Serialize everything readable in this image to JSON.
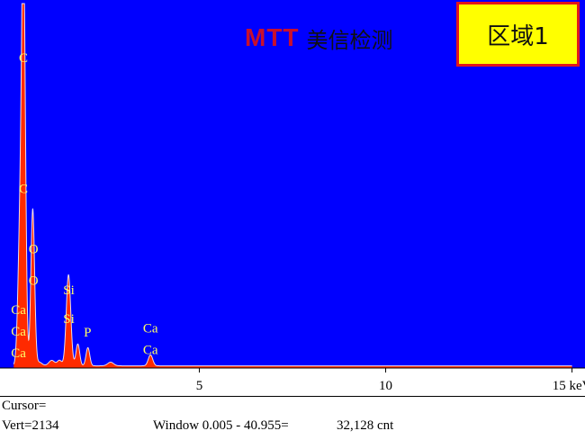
{
  "logo": {
    "mark": "MTT",
    "text": "美信检测"
  },
  "region_label": "区域1",
  "status": {
    "cursor": "Cursor=",
    "vert": "Vert=2134",
    "window": "Window 0.005 - 40.955=",
    "count": "32,128 cnt"
  },
  "colors": {
    "background": "#0000ff",
    "spectrum_fill": "#ff2a00",
    "spectrum_outline": "#ffffff",
    "peak_label": "#ffff66"
  },
  "chart_data": {
    "type": "area",
    "title": "",
    "xlabel": "",
    "ylabel": "",
    "xlim": [
      -0.3,
      15.3
    ],
    "ylim": [
      0,
      100
    ],
    "x_ticks": [
      5,
      10,
      15
    ],
    "x_tick_labels": [
      "5",
      "10",
      "15 keV"
    ],
    "grid": false,
    "legend": "none",
    "series": [
      {
        "peaks": [
          {
            "x": 0.28,
            "height": 97,
            "width": 0.045
          },
          {
            "x": 0.2,
            "height": 42,
            "width": 0.06
          },
          {
            "x": 0.53,
            "height": 43,
            "width": 0.05
          },
          {
            "x": 0.34,
            "height": 18,
            "width": 0.04
          },
          {
            "x": 1.49,
            "height": 25,
            "width": 0.06
          },
          {
            "x": 1.74,
            "height": 6,
            "width": 0.05
          },
          {
            "x": 2.01,
            "height": 5,
            "width": 0.05
          },
          {
            "x": 3.69,
            "height": 3,
            "width": 0.06
          },
          {
            "x": 1.04,
            "height": 1.5,
            "width": 0.08
          },
          {
            "x": 0.7,
            "height": 1,
            "width": 0.08
          },
          {
            "x": 1.25,
            "height": 1.5,
            "width": 0.06
          },
          {
            "x": 2.62,
            "height": 1,
            "width": 0.08
          }
        ],
        "baseline": 0.6
      }
    ],
    "annotations": [
      {
        "text": "C",
        "x": 0.28,
        "y": 84
      },
      {
        "text": "C",
        "x": 0.28,
        "y": 48
      },
      {
        "text": "O",
        "x": 0.55,
        "y": 31.5
      },
      {
        "text": "O",
        "x": 0.55,
        "y": 22.8
      },
      {
        "text": "Si",
        "x": 1.5,
        "y": 20.3
      },
      {
        "text": "Si",
        "x": 1.5,
        "y": 12.3
      },
      {
        "text": "P",
        "x": 2.0,
        "y": 8.6
      },
      {
        "text": "Ca",
        "x": 0.15,
        "y": 14.8
      },
      {
        "text": "Ca",
        "x": 0.15,
        "y": 8.9
      },
      {
        "text": "Ca",
        "x": 0.15,
        "y": 3.0
      },
      {
        "text": "Ca",
        "x": 3.69,
        "y": 9.8
      },
      {
        "text": "Ca",
        "x": 3.69,
        "y": 3.8
      }
    ]
  }
}
